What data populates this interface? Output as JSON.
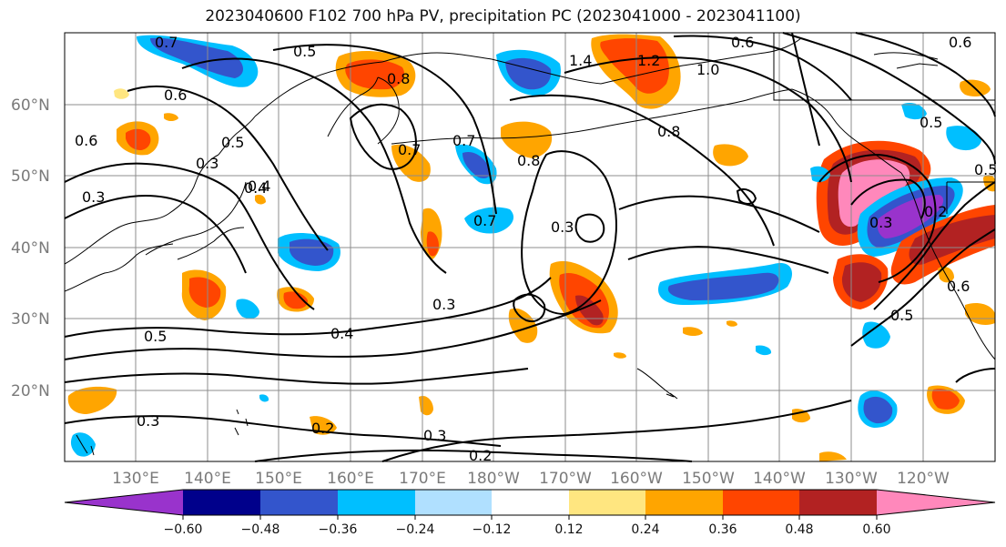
{
  "title": "2023040600 F102 700 hPa PV, precipitation PC (2023041000 - 2023041100)",
  "lat_labels": [
    "60°N",
    "50°N",
    "40°N",
    "30°N",
    "20°N"
  ],
  "lon_labels": [
    "130°E",
    "140°E",
    "150°E",
    "160°E",
    "170°E",
    "180°W",
    "170°W",
    "160°W",
    "150°W",
    "140°W",
    "130°W",
    "120°W"
  ],
  "colorbar": {
    "ticks": [
      "−0.60",
      "−0.48",
      "−0.36",
      "−0.24",
      "−0.12",
      "0.12",
      "0.24",
      "0.36",
      "0.48",
      "0.60"
    ],
    "colors": [
      "#9933cc",
      "#00008b",
      "#3355cc",
      "#00bfff",
      "#b0e0ff",
      "#ffffff",
      "#ffe680",
      "#ffa500",
      "#ff4500",
      "#b22222",
      "#ff88bb"
    ]
  },
  "contour_labels": [
    "0.7",
    "0.5",
    "0.6",
    "0.6",
    "0.5",
    "0.4",
    "0.3",
    "0.3",
    "0.8",
    "0.7",
    "0.7",
    "0.8",
    "1.4",
    "1.2",
    "1.0",
    "0.6",
    "0.7",
    "0.8",
    "0.4",
    "0.5",
    "0.3",
    "0.3",
    "0.3",
    "0.4",
    "0.5",
    "0.5",
    "0.6",
    "0.3",
    "0.2",
    "0.3",
    "0.2",
    "0.5",
    "0.6",
    "0.2"
  ]
}
